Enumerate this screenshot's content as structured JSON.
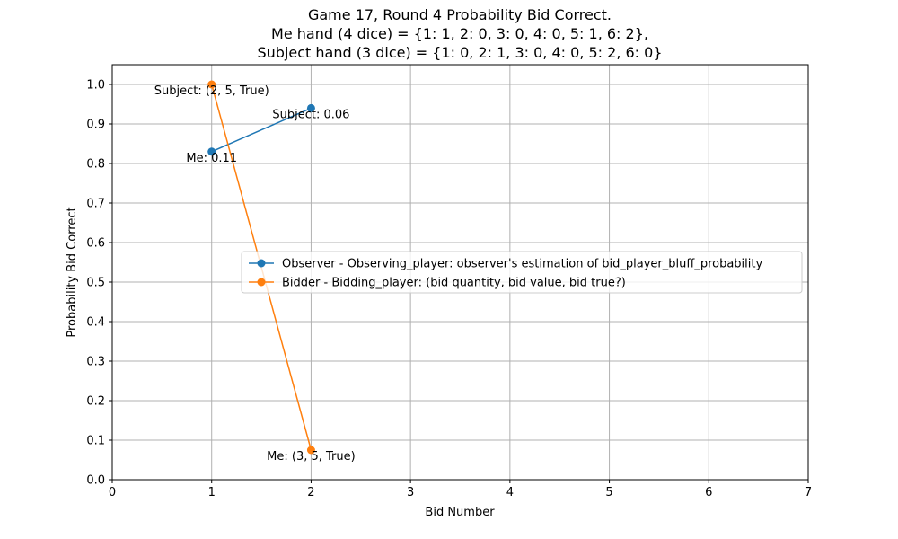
{
  "chart_data": {
    "type": "line",
    "title_lines": [
      "Game 17, Round 4 Probability Bid Correct.",
      "Me hand (4 dice) = {1: 1, 2: 0, 3: 0, 4: 0, 5: 1, 6: 2},",
      "Subject hand (3 dice) = {1: 0, 2: 1, 3: 0, 4: 0, 5: 2, 6: 0}"
    ],
    "xlabel": "Bid Number",
    "ylabel": "Probability Bid Correct",
    "xlim": [
      0,
      7
    ],
    "ylim": [
      0,
      1.05
    ],
    "xticks": [
      0,
      1,
      2,
      3,
      4,
      5,
      6,
      7
    ],
    "yticks": [
      0.0,
      0.1,
      0.2,
      0.3,
      0.4,
      0.5,
      0.6,
      0.7,
      0.8,
      0.9,
      1.0
    ],
    "grid": true,
    "legend_position": "center-right",
    "series": [
      {
        "name": "Observer - Observing_player: observer's estimation of bid_player_bluff_probability",
        "color": "#1f77b4",
        "x": [
          1,
          2
        ],
        "y": [
          0.83,
          0.94
        ]
      },
      {
        "name": "Bidder -  Bidding_player: (bid quantity, bid value, bid true?)",
        "color": "#ff7f0e",
        "x": [
          1,
          2
        ],
        "y": [
          1.0,
          0.075
        ]
      }
    ],
    "annotations": [
      {
        "text": "Me: 0.11",
        "x": 1,
        "y": 0.83,
        "series": 0
      },
      {
        "text": "Subject: 0.06",
        "x": 2,
        "y": 0.94,
        "series": 0
      },
      {
        "text": "Subject: (2, 5, True)",
        "x": 1,
        "y": 1.0,
        "series": 1
      },
      {
        "text": "Me: (3, 5, True)",
        "x": 2,
        "y": 0.075,
        "series": 1
      }
    ]
  }
}
